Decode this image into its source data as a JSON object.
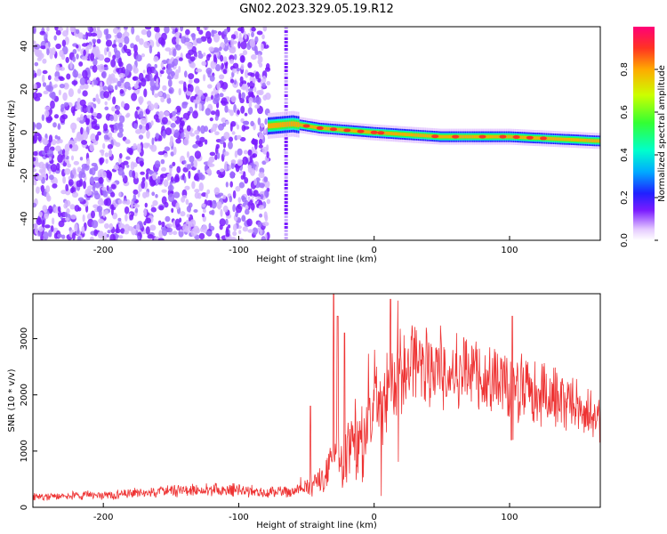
{
  "title": "GN02.2023.329.05.19.R12",
  "chart_data": [
    {
      "type": "heatmap",
      "xlabel": "Height of straight line (km)",
      "ylabel": "Frequency (Hz)",
      "xlim": [
        -252,
        167
      ],
      "ylim": [
        -50,
        49
      ],
      "xticks": [
        -200,
        -100,
        0,
        100
      ],
      "yticks": [
        -40,
        -20,
        0,
        20,
        40
      ],
      "colorbar": {
        "label": "Normalized spectral amplitude",
        "ticks": [
          0.0,
          0.2,
          0.4,
          0.6,
          0.8
        ],
        "range": [
          0,
          1
        ]
      },
      "ridge": {
        "description_points": [
          {
            "x": -78,
            "y": 3
          },
          {
            "x": -60,
            "y": 4
          },
          {
            "x": -40,
            "y": 2
          },
          {
            "x": 0,
            "y": 0
          },
          {
            "x": 50,
            "y": -2
          },
          {
            "x": 100,
            "y": -2
          },
          {
            "x": 167,
            "y": -4
          }
        ]
      }
    },
    {
      "type": "line",
      "xlabel": "Height of straight line (km)",
      "ylabel": "SNR (10 * v/v)",
      "xlim": [
        -252,
        167
      ],
      "ylim": [
        0,
        3800
      ],
      "xticks": [
        -200,
        -100,
        0,
        100
      ],
      "yticks": [
        0,
        1000,
        2000,
        3000
      ],
      "color": "#ee3333",
      "envelope": [
        {
          "x": -252,
          "y": 230
        },
        {
          "x": -200,
          "y": 260
        },
        {
          "x": -150,
          "y": 350
        },
        {
          "x": -110,
          "y": 380
        },
        {
          "x": -80,
          "y": 330
        },
        {
          "x": -60,
          "y": 320
        },
        {
          "x": -45,
          "y": 500
        },
        {
          "x": -30,
          "y": 1000
        },
        {
          "x": -15,
          "y": 1500
        },
        {
          "x": 0,
          "y": 2100
        },
        {
          "x": 15,
          "y": 2600
        },
        {
          "x": 30,
          "y": 2850
        },
        {
          "x": 50,
          "y": 2800
        },
        {
          "x": 70,
          "y": 2700
        },
        {
          "x": 90,
          "y": 2550
        },
        {
          "x": 110,
          "y": 2400
        },
        {
          "x": 130,
          "y": 2200
        },
        {
          "x": 150,
          "y": 2000
        },
        {
          "x": 167,
          "y": 1800
        }
      ],
      "spikes": [
        {
          "x": -47,
          "y": 1800
        },
        {
          "x": -30,
          "y": 3800
        },
        {
          "x": -27,
          "y": 3400
        },
        {
          "x": -22,
          "y": 3100
        },
        {
          "x": 12,
          "y": 3700
        },
        {
          "x": 102,
          "y": 3400
        }
      ]
    }
  ]
}
